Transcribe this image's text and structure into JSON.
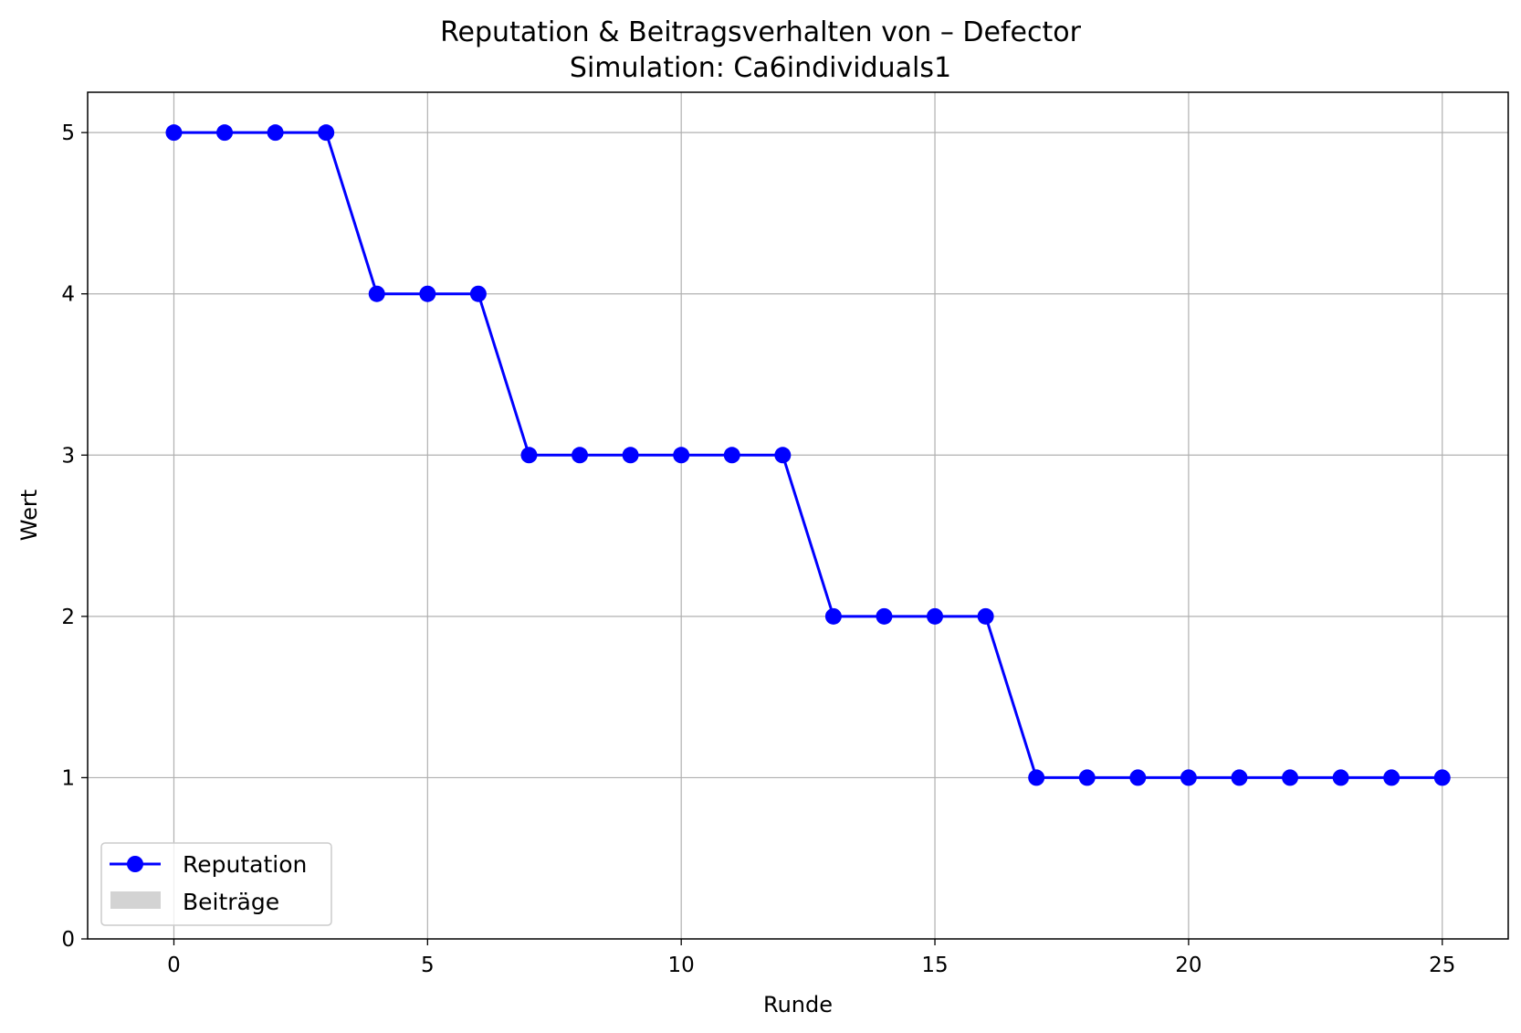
{
  "chart_data": {
    "type": "line",
    "title": "Reputation & Beitragsverhalten von – Defector",
    "subtitle": "Simulation: Ca6individuals1",
    "xlabel": "Runde",
    "ylabel": "Wert",
    "xlim": [
      -1.7,
      26.3
    ],
    "ylim": [
      0,
      5.25
    ],
    "xticks": [
      0,
      5,
      10,
      15,
      20,
      25
    ],
    "yticks": [
      0,
      1,
      2,
      3,
      4,
      5
    ],
    "grid": true,
    "legend_position": "lower-left",
    "series": [
      {
        "name": "Reputation",
        "color": "#0000ff",
        "marker": "circle",
        "x": [
          0,
          1,
          2,
          3,
          4,
          5,
          6,
          7,
          8,
          9,
          10,
          11,
          12,
          13,
          14,
          15,
          16,
          17,
          18,
          19,
          20,
          21,
          22,
          23,
          24,
          25
        ],
        "values": [
          5,
          5,
          5,
          5,
          4,
          4,
          4,
          3,
          3,
          3,
          3,
          3,
          3,
          2,
          2,
          2,
          2,
          1,
          1,
          1,
          1,
          1,
          1,
          1,
          1,
          1
        ]
      },
      {
        "name": "Beiträge",
        "type": "bar",
        "color": "#d3d3d3",
        "x": [],
        "values": []
      }
    ]
  }
}
